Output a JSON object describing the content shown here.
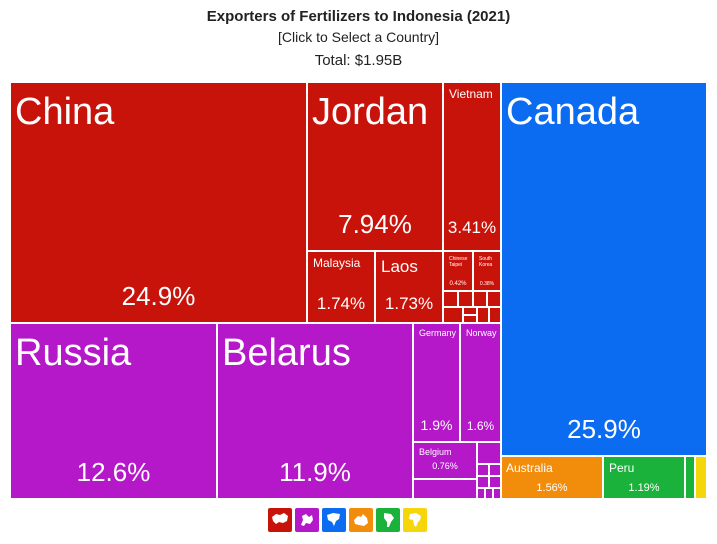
{
  "header": {
    "title": "Exporters of Fertilizers to Indonesia (2021)",
    "subtitle": "[Click to Select a Country]",
    "total": "Total: $1.95B"
  },
  "colors": {
    "asia": "#c8130b",
    "europe": "#b418c8",
    "north_america": "#0b6cf2",
    "oceania": "#f28c0b",
    "south_america": "#1bb23b",
    "africa": "#f5d60b"
  },
  "chart_data": {
    "type": "treemap",
    "title": "Exporters of Fertilizers to Indonesia (2021)",
    "total": "$1.95B",
    "items": [
      {
        "name": "Canada",
        "share": 25.9,
        "share_label": "25.9%",
        "region": "north_america"
      },
      {
        "name": "China",
        "share": 24.9,
        "share_label": "24.9%",
        "region": "asia"
      },
      {
        "name": "Russia",
        "share": 12.6,
        "share_label": "12.6%",
        "region": "europe"
      },
      {
        "name": "Belarus",
        "share": 11.9,
        "share_label": "11.9%",
        "region": "europe"
      },
      {
        "name": "Jordan",
        "share": 7.94,
        "share_label": "7.94%",
        "region": "asia"
      },
      {
        "name": "Vietnam",
        "share": 3.41,
        "share_label": "3.41%",
        "region": "asia"
      },
      {
        "name": "Germany",
        "share": 1.9,
        "share_label": "1.9%",
        "region": "europe"
      },
      {
        "name": "Malaysia",
        "share": 1.74,
        "share_label": "1.74%",
        "region": "asia"
      },
      {
        "name": "Laos",
        "share": 1.73,
        "share_label": "1.73%",
        "region": "asia"
      },
      {
        "name": "Norway",
        "share": 1.6,
        "share_label": "1.6%",
        "region": "europe"
      },
      {
        "name": "Australia",
        "share": 1.56,
        "share_label": "1.56%",
        "region": "oceania"
      },
      {
        "name": "Peru",
        "share": 1.19,
        "share_label": "1.19%",
        "region": "south_america"
      },
      {
        "name": "Belgium",
        "share": 0.76,
        "share_label": "0.76%",
        "region": "europe"
      },
      {
        "name": "Chinese Taipei",
        "share": 0.42,
        "share_label": "0.42%",
        "region": "asia"
      },
      {
        "name": "South Korea",
        "share": 0.38,
        "share_label": "0.38%",
        "region": "asia"
      }
    ]
  },
  "legend": {
    "icons": [
      {
        "name": "asia-icon",
        "region": "asia"
      },
      {
        "name": "europe-icon",
        "region": "europe"
      },
      {
        "name": "north-america-icon",
        "region": "north_america"
      },
      {
        "name": "oceania-icon",
        "region": "oceania"
      },
      {
        "name": "south-america-icon",
        "region": "south_america"
      },
      {
        "name": "africa-icon",
        "region": "africa"
      }
    ]
  }
}
